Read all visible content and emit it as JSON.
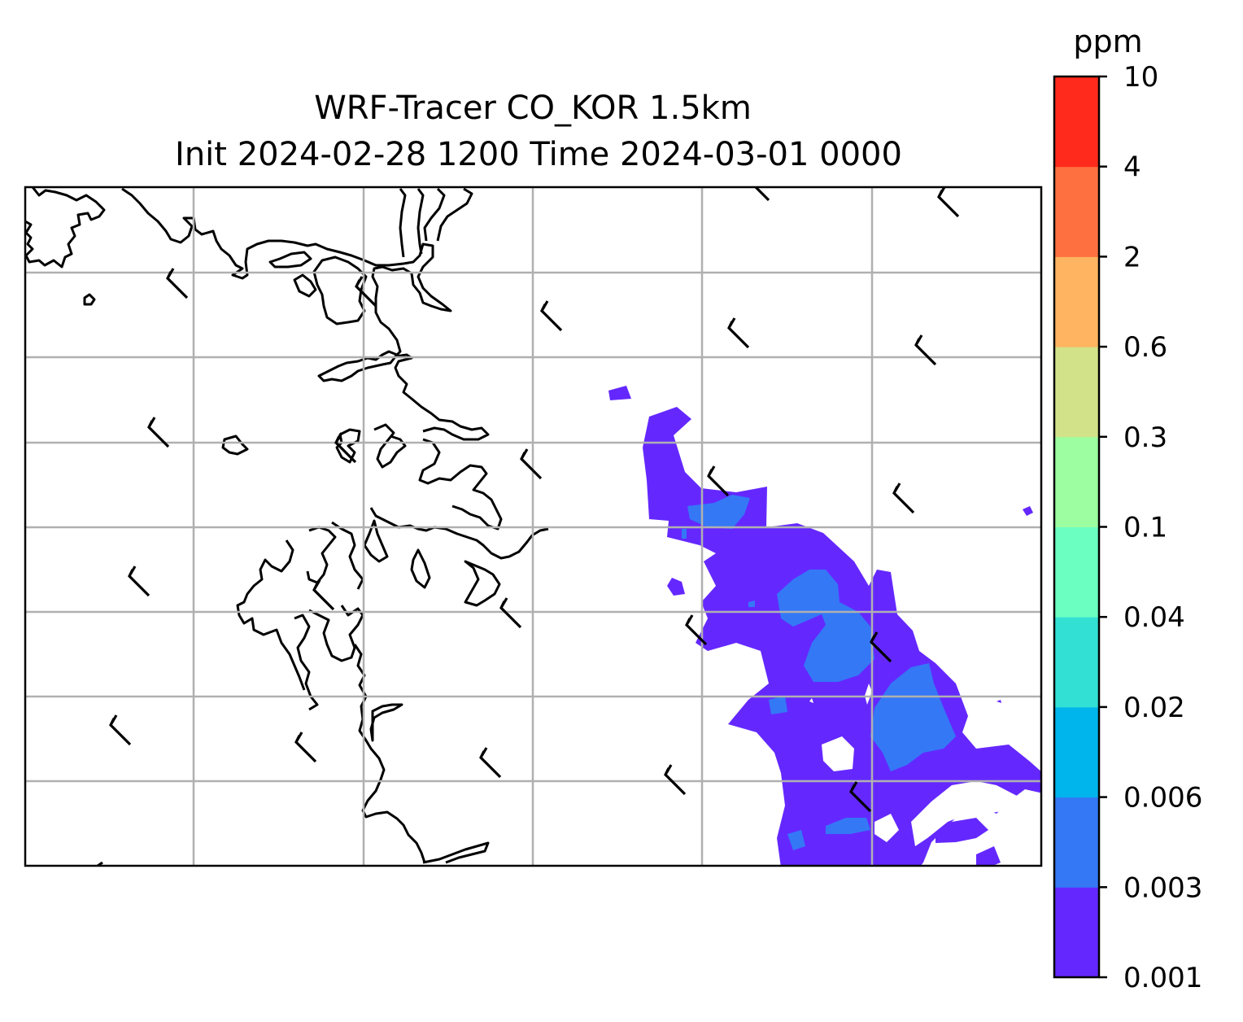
{
  "title_line1": "WRF-Tracer CO_KOR 1.5km",
  "title_line2": "Init 2024-02-28 1200 Time 2024-03-01 0000",
  "colorbar": {
    "unit": "ppm",
    "levels": [
      "0.001",
      "0.003",
      "0.006",
      "0.02",
      "0.04",
      "0.1",
      "0.3",
      "0.6",
      "2",
      "4",
      "10"
    ],
    "colors": [
      "#6428ff",
      "#3478f6",
      "#00b4ec",
      "#32e0d4",
      "#6cffc2",
      "#9cfea0",
      "#d2e288",
      "#feb460",
      "#ff7040",
      "#ff2a1c"
    ]
  },
  "map": {
    "grid": true,
    "grid_color": "#b0b0b0",
    "coastline_color": "#000000",
    "wind_barbs": true
  },
  "chart_data": {
    "type": "heatmap",
    "title": "WRF-Tracer CO_KOR 1.5km / Init 2024-02-28 1200 Time 2024-03-01 0000",
    "variable": "CO tracer concentration",
    "unit": "ppm",
    "levels": [
      0.001,
      0.003,
      0.006,
      0.02,
      0.04,
      0.1,
      0.3,
      0.6,
      2,
      4,
      10
    ],
    "observed_max_band": [
      0.003,
      0.006
    ],
    "plume_location": "east and south-east of the domain",
    "legend_position": "right"
  }
}
